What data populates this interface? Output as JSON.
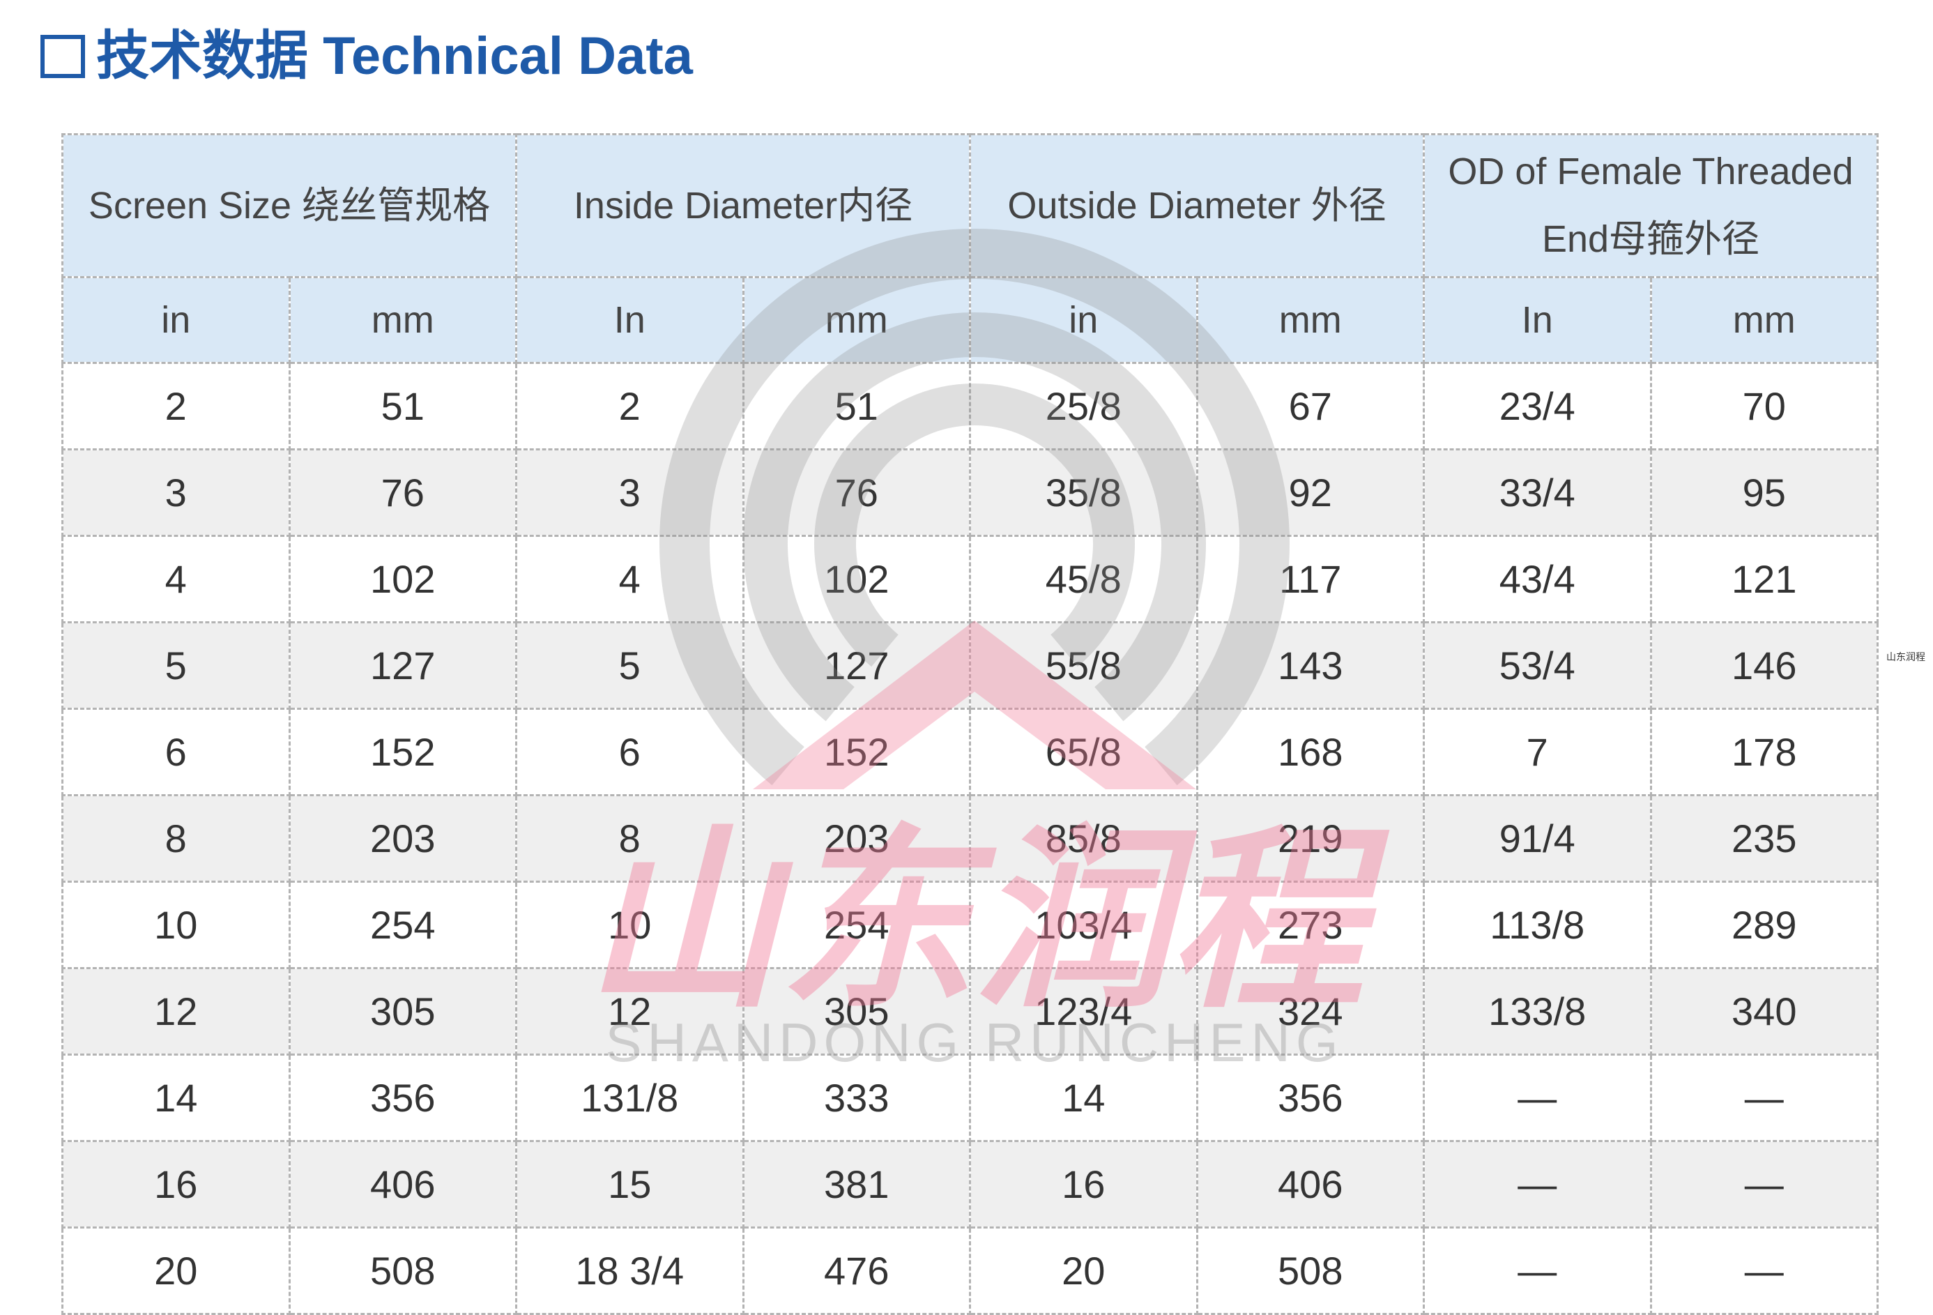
{
  "title": {
    "text": "技术数据 Technical Data"
  },
  "colors": {
    "accent": "#1e5aa8",
    "header_bg": "#d9e8f6",
    "stripe_bg": "#efefef",
    "text": "#333333",
    "border": "#b3b3b3",
    "watermark_gray": "#8c8c8c",
    "watermark_pink": "#f07896"
  },
  "icons": {
    "title_bullet": "square-outline-icon",
    "watermark": "runcheng-logo-icon"
  },
  "table": {
    "group_headers": [
      {
        "lines": [
          "Screen Size 绕丝管规格"
        ]
      },
      {
        "lines": [
          "Inside Diameter内径"
        ]
      },
      {
        "lines": [
          "Outside Diameter 外径"
        ]
      },
      {
        "lines": [
          "OD of Female Threaded",
          "End母箍外径"
        ]
      }
    ],
    "units": [
      "in",
      "mm",
      "In",
      "mm",
      "in",
      "mm",
      "In",
      "mm"
    ],
    "rows": [
      [
        "2",
        "51",
        "2",
        "51",
        "25/8",
        "67",
        "23/4",
        "70"
      ],
      [
        "3",
        "76",
        "3",
        "76",
        "35/8",
        "92",
        "33/4",
        "95"
      ],
      [
        "4",
        "102",
        "4",
        "102",
        "45/8",
        "117",
        "43/4",
        "121"
      ],
      [
        "5",
        "127",
        "5",
        "127",
        "55/8",
        "143",
        "53/4",
        "146"
      ],
      [
        "6",
        "152",
        "6",
        "152",
        "65/8",
        "168",
        "7",
        "178"
      ],
      [
        "8",
        "203",
        "8",
        "203",
        "85/8",
        "219",
        "91/4",
        "235"
      ],
      [
        "10",
        "254",
        "10",
        "254",
        "103/4",
        "273",
        "113/8",
        "289"
      ],
      [
        "12",
        "305",
        "12",
        "305",
        "123/4",
        "324",
        "133/8",
        "340"
      ],
      [
        "14",
        "356",
        "131/8",
        "333",
        "14",
        "356",
        "—",
        "—"
      ],
      [
        "16",
        "406",
        "15",
        "381",
        "16",
        "406",
        "—",
        "—"
      ],
      [
        "20",
        "508",
        "18 3/4",
        "476",
        "20",
        "508",
        "—",
        "—"
      ]
    ]
  },
  "watermark": {
    "logo_text_cn": "山东润程",
    "logo_text_en": "SHANDONG RUNCHENG"
  },
  "side_label": "山东润程"
}
